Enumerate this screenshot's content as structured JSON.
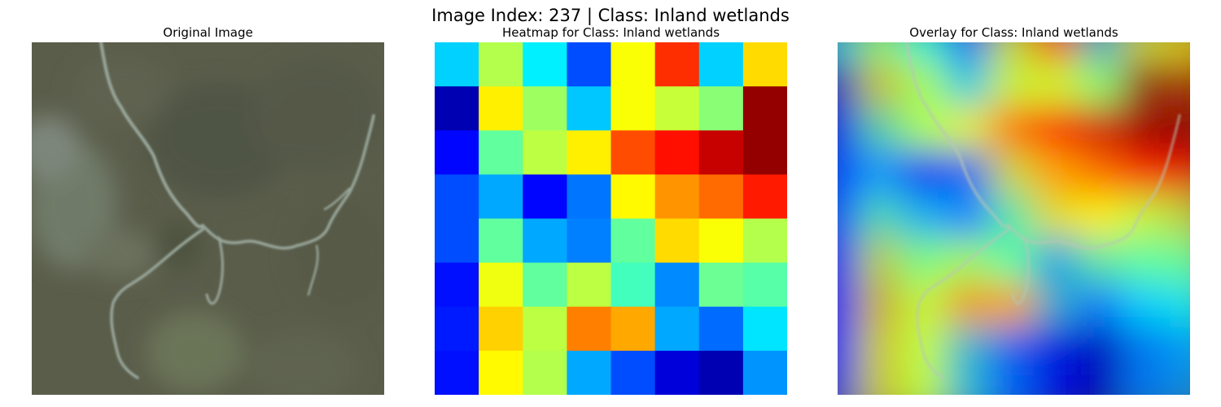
{
  "figure": {
    "suptitle": "Image Index: 237 | Class: Inland wetlands",
    "panels": [
      {
        "title": "Original Image"
      },
      {
        "title": "Heatmap for Class: Inland wetlands"
      },
      {
        "title": "Overlay for Class: Inland wetlands"
      }
    ]
  },
  "heatmap": {
    "colormap": "jet",
    "rows": 8,
    "cols": 8,
    "values": [
      [
        0.33,
        0.55,
        0.36,
        0.2,
        0.62,
        0.83,
        0.33,
        0.66
      ],
      [
        0.05,
        0.64,
        0.53,
        0.32,
        0.62,
        0.57,
        0.51,
        0.98
      ],
      [
        0.13,
        0.47,
        0.56,
        0.64,
        0.8,
        0.86,
        0.93,
        0.98
      ],
      [
        0.2,
        0.29,
        0.13,
        0.24,
        0.63,
        0.73,
        0.77,
        0.85
      ],
      [
        0.2,
        0.47,
        0.29,
        0.25,
        0.47,
        0.66,
        0.62,
        0.55
      ],
      [
        0.14,
        0.61,
        0.47,
        0.56,
        0.44,
        0.26,
        0.48,
        0.46
      ],
      [
        0.15,
        0.67,
        0.56,
        0.75,
        0.71,
        0.29,
        0.23,
        0.35
      ],
      [
        0.14,
        0.63,
        0.55,
        0.29,
        0.2,
        0.09,
        0.05,
        0.27
      ]
    ]
  }
}
